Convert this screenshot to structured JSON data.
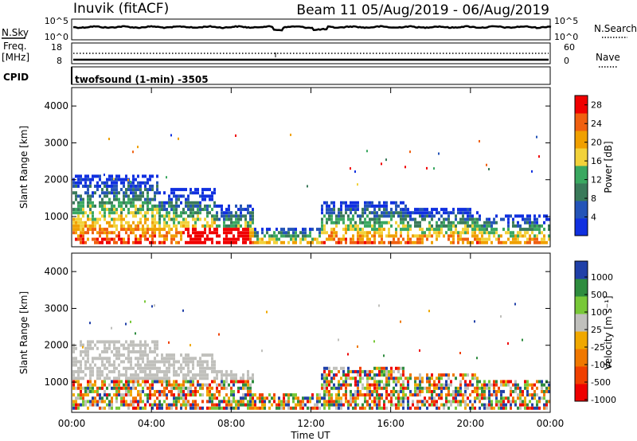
{
  "header": {
    "station": "Inuvik (fitACF)",
    "beam_date": "Beam 11 05/Aug/2019 - 06/Aug/2019"
  },
  "panels": {
    "nsky_label": "N.Sky",
    "nsky_ticks": [
      "10^5",
      "10^0"
    ],
    "nsearch_label": "N.Search",
    "nsearch_ticks": [
      "10^5",
      "10^0"
    ],
    "freq_label": "Freq.",
    "freq_unit": "[MHz]",
    "freq_ticks": [
      "18",
      "8"
    ],
    "nave_label": "Nave",
    "nave_ticks": [
      "60",
      "0"
    ],
    "cpid_label": "CPID",
    "cpid_value": "twofsound (1-min) -3505"
  },
  "colors": {
    "power": [
      "#1030e0",
      "#2454b8",
      "#3a7a5a",
      "#3aa860",
      "#f2d23a",
      "#f0a000",
      "#f06010",
      "#f00000"
    ],
    "velocity": [
      "#ee0000",
      "#f04000",
      "#f07800",
      "#f0a800",
      "#c0c0bc",
      "#78c838",
      "#2e8c3e",
      "#2040a8"
    ]
  },
  "chart_data": [
    {
      "type": "heatmap",
      "title": "",
      "ylabel": "Slant Range [km]",
      "yticks": [
        "4000",
        "3000",
        "2000",
        "1000"
      ],
      "ylim": [
        180,
        4500
      ],
      "xlabel": "",
      "xticks": [
        "00:00",
        "04:00",
        "08:00",
        "12:00",
        "16:00",
        "20:00",
        "00:00"
      ],
      "colorbar": {
        "label": "Power [dB]",
        "ticks": [
          "28",
          "24",
          "20",
          "16",
          "12",
          "8",
          "4"
        ],
        "range": [
          0,
          30
        ]
      }
    },
    {
      "type": "heatmap",
      "title": "",
      "ylabel": "Slant Range [km]",
      "yticks": [
        "4000",
        "3000",
        "2000",
        "1000"
      ],
      "ylim": [
        180,
        4500
      ],
      "xlabel": "Time UT",
      "xticks": [
        "00:00",
        "04:00",
        "08:00",
        "12:00",
        "16:00",
        "20:00",
        "00:00"
      ],
      "colorbar": {
        "label": "Velocity [m s⁻¹]",
        "ticks": [
          "1000",
          "500",
          "100",
          "25",
          "-25",
          "-100",
          "-500",
          "-1000"
        ],
        "range": [
          -1000,
          1000
        ]
      }
    }
  ]
}
